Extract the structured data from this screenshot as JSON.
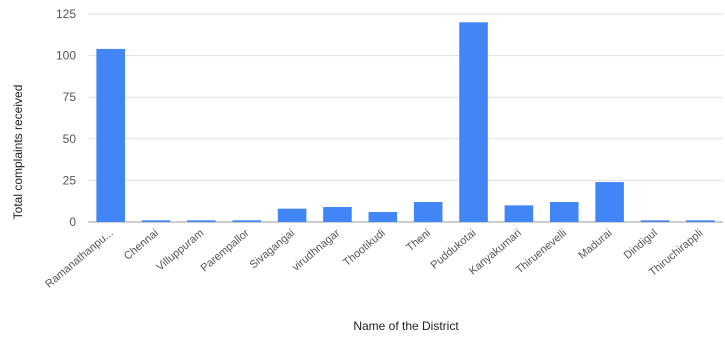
{
  "chart_data": {
    "type": "bar",
    "categories": [
      "Ramanathanpu...",
      "Chennai",
      "Villuppuram",
      "Parempallor",
      "Sivagangai",
      "virudhnagar",
      "Thootikudi",
      "Theni",
      "Puddukotai",
      "Kanyakumari",
      "Thiruenevelli",
      "Madurai",
      "Dindigul",
      "Thiruchirappli"
    ],
    "values": [
      104,
      1,
      1,
      1,
      8,
      9,
      6,
      12,
      120,
      10,
      12,
      24,
      1,
      1
    ],
    "xlabel": "Name of the District",
    "ylabel": "Total complaints received",
    "ylim": [
      0,
      125
    ],
    "yticks": [
      0,
      25,
      50,
      75,
      100,
      125
    ],
    "grid": true,
    "legend": "none",
    "bar_color": "#4285f4",
    "grid_color": "#e0e0e0"
  }
}
